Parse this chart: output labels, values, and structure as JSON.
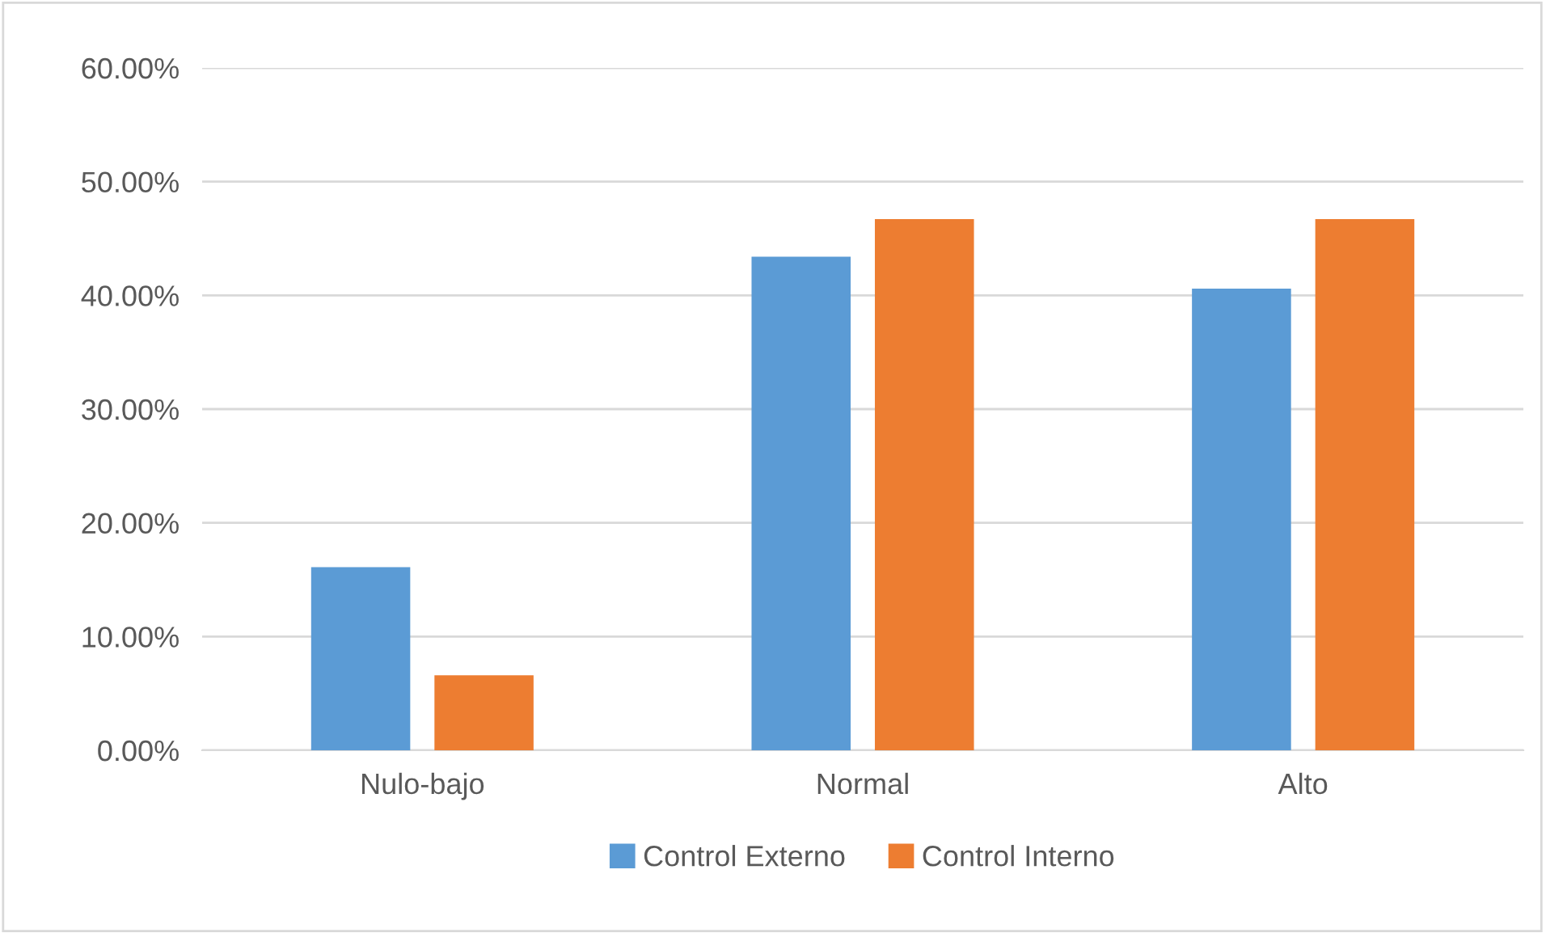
{
  "chart_data": {
    "type": "bar",
    "categories": [
      "Nulo-bajo",
      "Normal",
      "Alto"
    ],
    "series": [
      {
        "name": "Control Externo",
        "color": "#5b9bd5",
        "values": [
          16.1,
          43.4,
          40.6
        ]
      },
      {
        "name": "Control Interno",
        "color": "#ed7d31",
        "values": [
          6.6,
          46.7,
          46.7
        ]
      }
    ],
    "ylim": [
      0,
      60
    ],
    "yticks": [
      {
        "value": 0,
        "label": "0.00%"
      },
      {
        "value": 10,
        "label": "10.00%"
      },
      {
        "value": 20,
        "label": "20.00%"
      },
      {
        "value": 30,
        "label": "30.00%"
      },
      {
        "value": 40,
        "label": "40.00%"
      },
      {
        "value": 50,
        "label": "50.00%"
      },
      {
        "value": 60,
        "label": "60.00%"
      }
    ],
    "grid": "y",
    "legend": "bottom"
  }
}
